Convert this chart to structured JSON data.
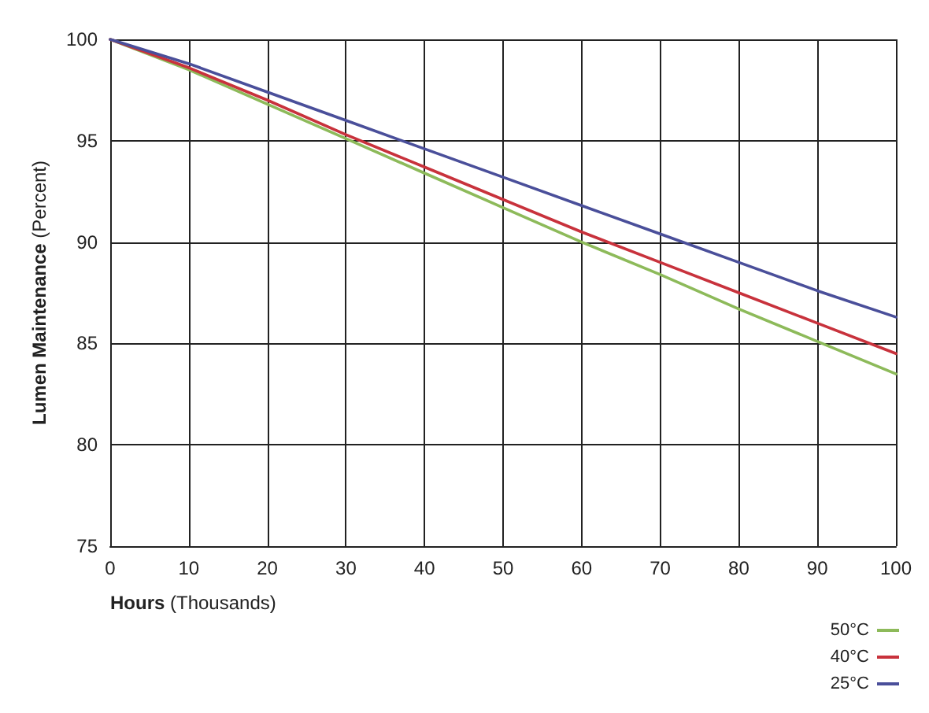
{
  "chart_data": {
    "type": "line",
    "xlabel": "Hours (Thousands)",
    "ylabel": "Lumen Maintenance (Percent)",
    "x": [
      0,
      10,
      20,
      30,
      40,
      50,
      60,
      70,
      80,
      90,
      100
    ],
    "series": [
      {
        "name": "50°C",
        "color": "#8dba5a",
        "values": [
          100,
          98.5,
          96.8,
          95.1,
          93.4,
          91.7,
          90.0,
          88.4,
          86.7,
          85.1,
          83.5
        ]
      },
      {
        "name": "40°C",
        "color": "#c8323c",
        "values": [
          100,
          98.6,
          97.0,
          95.3,
          93.7,
          92.1,
          90.5,
          89.0,
          87.5,
          86.0,
          84.5
        ]
      },
      {
        "name": "25°C",
        "color": "#4a4f9a",
        "values": [
          100,
          98.8,
          97.4,
          96.0,
          94.6,
          93.2,
          91.8,
          90.4,
          89.0,
          87.6,
          86.3
        ]
      }
    ],
    "xlim": [
      0,
      100
    ],
    "xticks": [
      0,
      10,
      20,
      30,
      40,
      50,
      60,
      70,
      80,
      90,
      100
    ],
    "ylim": [
      75,
      100
    ],
    "yticks": [
      75,
      80,
      85,
      90,
      95,
      100
    ],
    "grid": true,
    "legend": "bottom right",
    "marker": "none",
    "line_style": "solid"
  }
}
